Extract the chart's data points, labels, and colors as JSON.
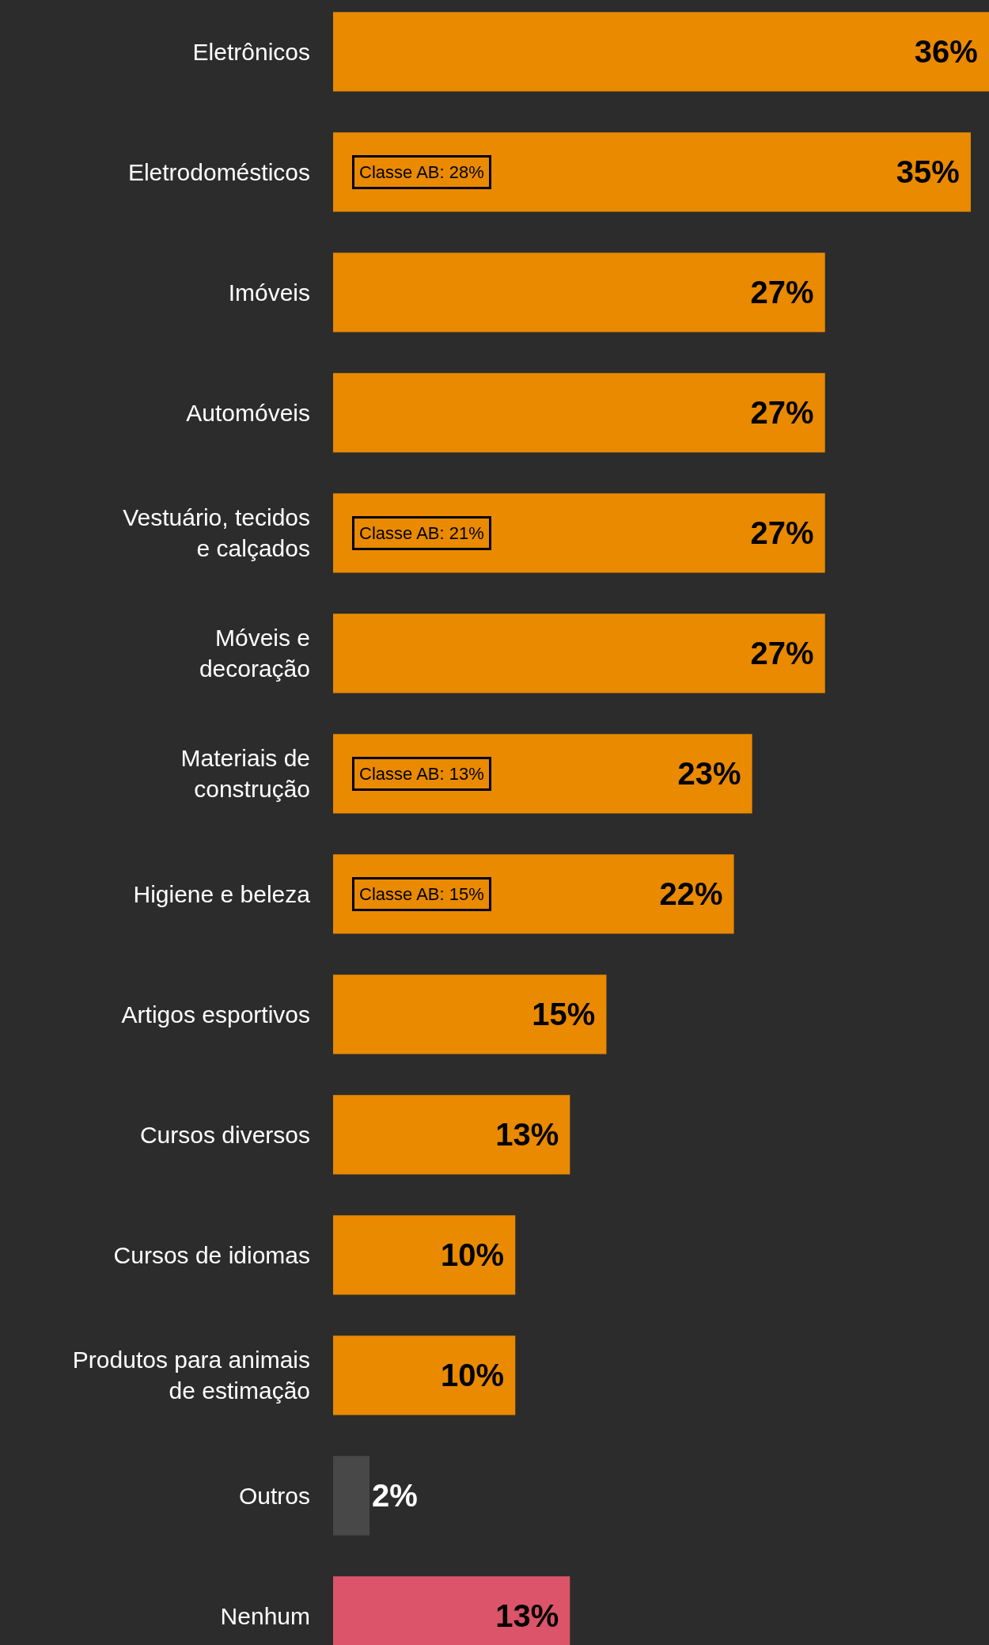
{
  "chart_data": {
    "type": "bar",
    "orientation": "horizontal",
    "categories": [
      "Eletrônicos",
      "Eletrodomésticos",
      "Imóveis",
      "Automóveis",
      "Vestuário, tecidos\ne calçados",
      "Móveis e\ndecoração",
      "Materiais de\nconstrução",
      "Higiene e beleza",
      "Artigos esportivos",
      "Cursos diversos",
      "Cursos de idiomas",
      "Produtos para animais\nde estimação",
      "Outros",
      "Nenhum"
    ],
    "values": [
      36,
      35,
      27,
      27,
      27,
      27,
      23,
      22,
      15,
      13,
      10,
      10,
      2,
      13
    ],
    "colors": [
      "#e98a00",
      "#e98a00",
      "#e98a00",
      "#e98a00",
      "#e98a00",
      "#e98a00",
      "#e98a00",
      "#e98a00",
      "#e98a00",
      "#e98a00",
      "#e98a00",
      "#e98a00",
      "#484848",
      "#dc5469"
    ],
    "value_labels": [
      "36%",
      "35%",
      "27%",
      "27%",
      "27%",
      "27%",
      "23%",
      "22%",
      "15%",
      "13%",
      "10%",
      "10%",
      "2%",
      "13%"
    ],
    "annotations": [
      "Classe AB: 28%",
      "Classe AB: 21%",
      "Classe AB: 13%",
      "Classe AB: 15%"
    ],
    "tick_labels": "y",
    "grid": false,
    "legend": false
  }
}
